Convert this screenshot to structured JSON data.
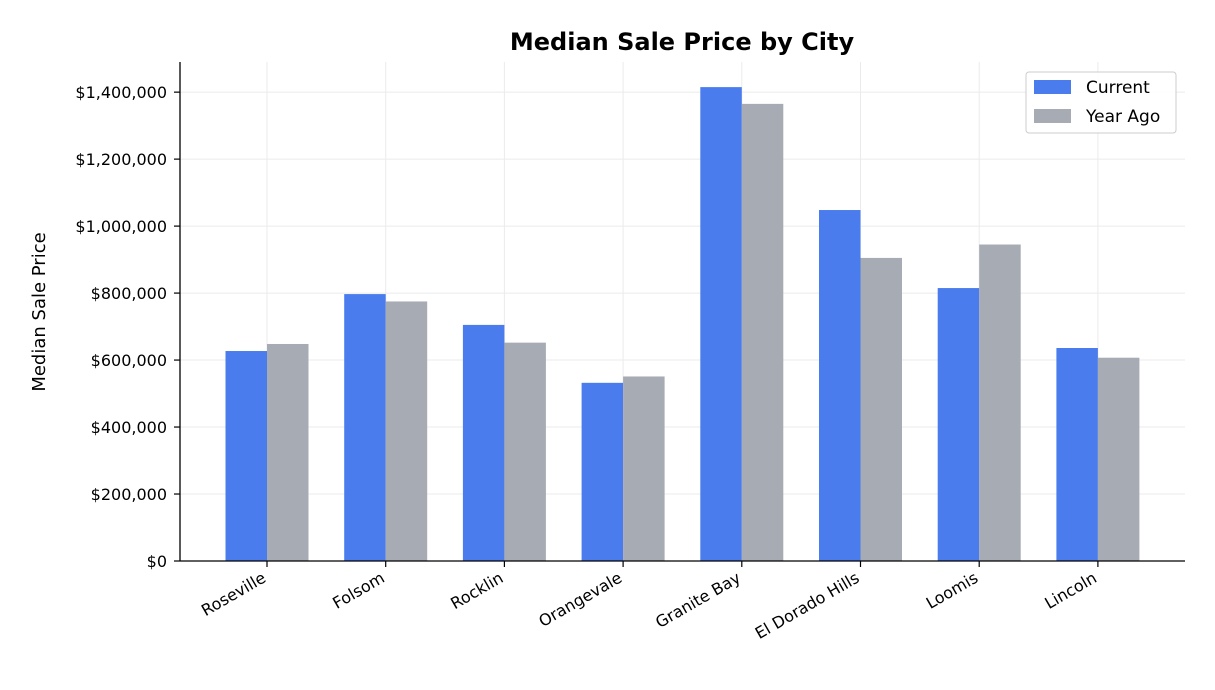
{
  "chart_data": {
    "type": "bar",
    "title": "Median Sale Price by City",
    "xlabel": "",
    "ylabel": "Median Sale Price",
    "categories": [
      "Roseville",
      "Folsom",
      "Rocklin",
      "Orangevale",
      "Granite Bay",
      "El Dorado Hills",
      "Loomis",
      "Lincoln"
    ],
    "series": [
      {
        "name": "Current",
        "color": "#4a7cee",
        "values": [
          627000,
          797000,
          705000,
          532000,
          1415000,
          1048000,
          815000,
          636000
        ]
      },
      {
        "name": "Year Ago",
        "color": "#a7abb3",
        "values": [
          648000,
          775000,
          652000,
          551000,
          1365000,
          905000,
          945000,
          607000
        ]
      }
    ],
    "ylim": [
      0,
      1490000
    ],
    "yticks": [
      0,
      200000,
      400000,
      600000,
      800000,
      1000000,
      1200000,
      1400000
    ],
    "ytick_labels": [
      "$0",
      "$200,000",
      "$400,000",
      "$600,000",
      "$800,000",
      "$1,000,000",
      "$1,200,000",
      "$1,400,000"
    ],
    "grid": true,
    "legend_position": "top-right"
  }
}
